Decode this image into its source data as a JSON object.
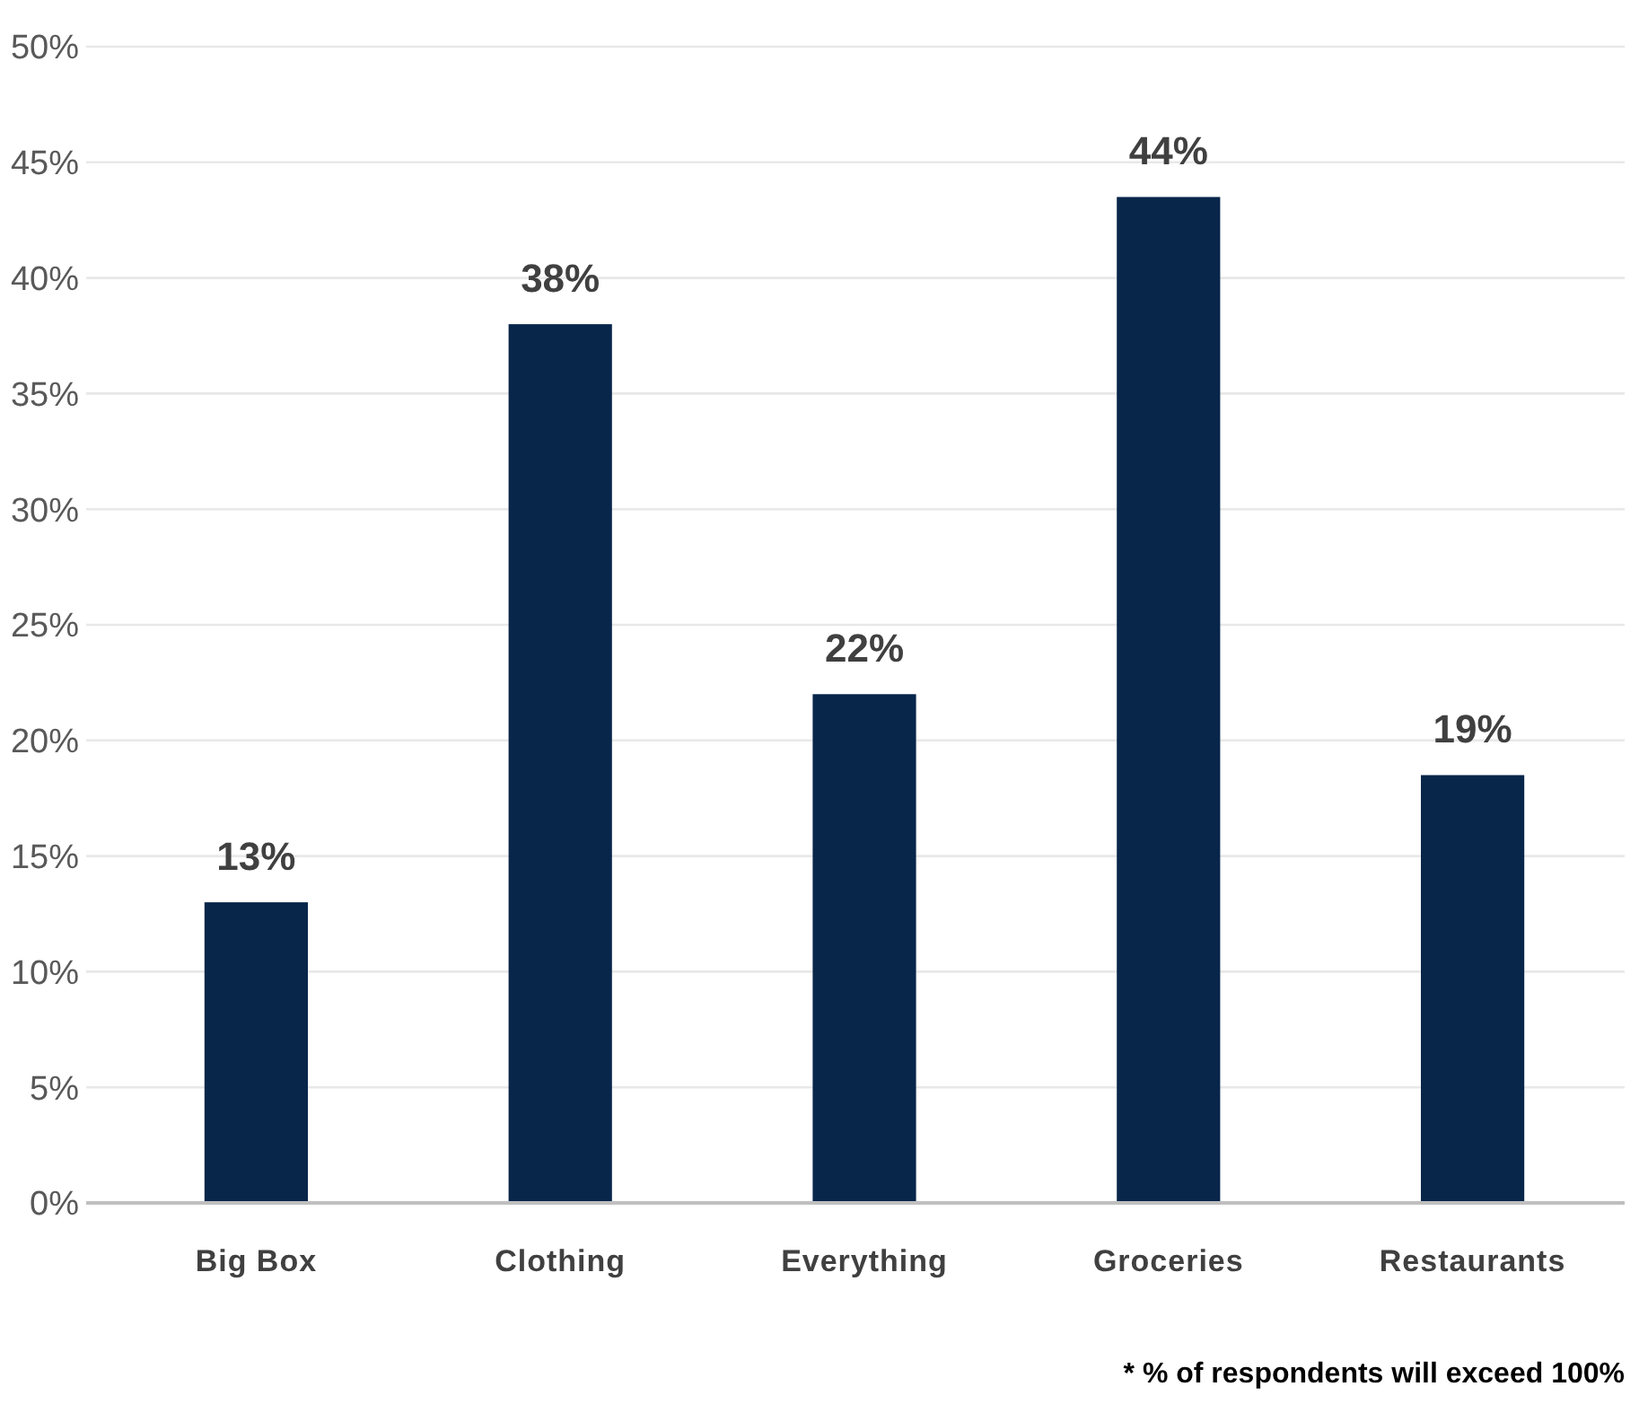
{
  "chart_data": {
    "type": "bar",
    "categories": [
      "Big Box",
      "Clothing",
      "Everything",
      "Groceries",
      "Restaurants"
    ],
    "values": [
      13,
      38,
      22,
      43.5,
      18.5
    ],
    "value_labels": [
      "13%",
      "38%",
      "22%",
      "44%",
      "19%"
    ],
    "color": "#08264a",
    "ylim": [
      0,
      50
    ],
    "yticks": [
      {
        "value": 0,
        "label": "0%"
      },
      {
        "value": 5,
        "label": "5%"
      },
      {
        "value": 10,
        "label": "10%"
      },
      {
        "value": 15,
        "label": "15%"
      },
      {
        "value": 20,
        "label": "20%"
      },
      {
        "value": 25,
        "label": "25%"
      },
      {
        "value": 30,
        "label": "30%"
      },
      {
        "value": 35,
        "label": "35%"
      },
      {
        "value": 40,
        "label": "40%"
      },
      {
        "value": 45,
        "label": "45%"
      },
      {
        "value": 50,
        "label": "50%"
      }
    ],
    "grid": "y",
    "annotations": [
      "* % of respondents will exceed 100%"
    ]
  }
}
